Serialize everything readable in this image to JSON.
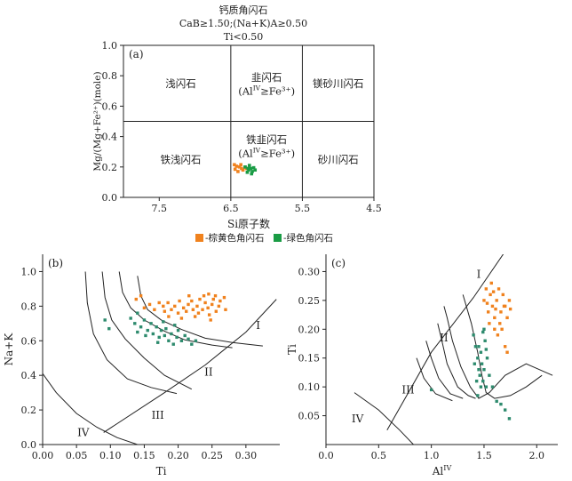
{
  "header": {
    "line1": "钙质角闪石",
    "line2": "CaB≥1.50;(Na+K)A≥0.50",
    "line3": "Ti<0.50"
  },
  "legend": {
    "items": [
      {
        "label": "-棕黄色角闪石",
        "color": "#f0821e"
      },
      {
        "label": "-绿色角闪石",
        "color": "#1a9c45"
      }
    ]
  },
  "chart_data": [
    {
      "id": "a",
      "type": "scatter",
      "panel_label": "(a)",
      "xlabel": "Si原子数",
      "ylabel": "Mg/(Mg+Fe²⁺)(mole)",
      "xlim": [
        8.0,
        4.5
      ],
      "ylim": [
        0.0,
        1.0
      ],
      "xticks": [
        "7.5",
        "6.5",
        "5.5",
        "4.5"
      ],
      "xtick_values": [
        7.5,
        6.5,
        5.5,
        4.5
      ],
      "yticks": [
        "0.0",
        "0.2",
        "0.4",
        "0.6",
        "0.8",
        "1.0"
      ],
      "ytick_values": [
        0.0,
        0.2,
        0.4,
        0.6,
        0.8,
        1.0
      ],
      "field_boundaries": {
        "x": [
          6.5,
          5.5
        ],
        "y": 0.5
      },
      "fields": [
        {
          "name": "浅闪石",
          "x": 7.2,
          "y": 0.75
        },
        {
          "name": "韭闪石",
          "x": 6.0,
          "y": 0.79
        },
        {
          "name": "(Al",
          "sup": "IV",
          "rest": "≥Fe³⁺)",
          "x": 6.0,
          "y": 0.7
        },
        {
          "name": "镁砂川闪石",
          "x": 5.0,
          "y": 0.75
        },
        {
          "name": "铁浅闪石",
          "x": 7.2,
          "y": 0.25
        },
        {
          "name": "铁韭闪石",
          "x": 6.0,
          "y": 0.38
        },
        {
          "name": "(Al",
          "sup": "IV",
          "rest": "≥Fe³⁺)",
          "x": 6.0,
          "y": 0.29
        },
        {
          "name": "砂川闪石",
          "x": 5.0,
          "y": 0.25
        }
      ],
      "series": [
        {
          "color": "#f0821e",
          "points": [
            [
              6.45,
              0.215
            ],
            [
              6.42,
              0.205
            ],
            [
              6.38,
              0.2
            ],
            [
              6.35,
              0.19
            ],
            [
              6.4,
              0.17
            ],
            [
              6.33,
              0.18
            ],
            [
              6.3,
              0.2
            ],
            [
              6.44,
              0.185
            ],
            [
              6.36,
              0.215
            ],
            [
              6.28,
              0.19
            ]
          ]
        },
        {
          "color": "#1a9c45",
          "points": [
            [
              6.3,
              0.2
            ],
            [
              6.25,
              0.18
            ],
            [
              6.22,
              0.19
            ],
            [
              6.2,
              0.17
            ],
            [
              6.27,
              0.165
            ],
            [
              6.18,
              0.195
            ],
            [
              6.24,
              0.21
            ],
            [
              6.21,
              0.155
            ],
            [
              6.16,
              0.18
            ],
            [
              6.26,
              0.19
            ]
          ]
        }
      ]
    },
    {
      "id": "b",
      "type": "scatter",
      "panel_label": "(b)",
      "xlabel": "Ti",
      "ylabel": "Na+K",
      "xlim": [
        0.0,
        0.35
      ],
      "ylim": [
        0.0,
        1.1
      ],
      "xticks": [
        "0.00",
        "0.05",
        "0.10",
        "0.15",
        "0.20",
        "0.25",
        "0.30"
      ],
      "xtick_values": [
        0.0,
        0.05,
        0.1,
        0.15,
        0.2,
        0.25,
        0.3
      ],
      "yticks": [
        "0.0",
        "0.2",
        "0.4",
        "0.6",
        "0.8",
        "1.0"
      ],
      "ytick_values": [
        0.0,
        0.2,
        0.4,
        0.6,
        0.8,
        1.0
      ],
      "field_labels": [
        {
          "text": "I",
          "x": 0.318,
          "y": 0.69
        },
        {
          "text": "II",
          "x": 0.245,
          "y": 0.42
        },
        {
          "text": "III",
          "x": 0.17,
          "y": 0.17
        },
        {
          "text": "IV",
          "x": 0.06,
          "y": 0.07
        }
      ],
      "curves": [
        [
          [
            0.0,
            0.41
          ],
          [
            0.02,
            0.3
          ],
          [
            0.05,
            0.18
          ],
          [
            0.08,
            0.1
          ],
          [
            0.11,
            0.04
          ],
          [
            0.14,
            0.0
          ]
        ],
        [
          [
            0.063,
            1.0
          ],
          [
            0.066,
            0.82
          ],
          [
            0.075,
            0.64
          ],
          [
            0.095,
            0.49
          ],
          [
            0.125,
            0.38
          ],
          [
            0.16,
            0.33
          ],
          [
            0.198,
            0.295
          ]
        ],
        [
          [
            0.088,
            1.0
          ],
          [
            0.092,
            0.85
          ],
          [
            0.102,
            0.72
          ],
          [
            0.122,
            0.61
          ],
          [
            0.15,
            0.5
          ],
          [
            0.18,
            0.4
          ],
          [
            0.22,
            0.32
          ]
        ],
        [
          [
            0.113,
            1.0
          ],
          [
            0.118,
            0.88
          ],
          [
            0.13,
            0.79
          ],
          [
            0.15,
            0.72
          ],
          [
            0.18,
            0.655
          ],
          [
            0.21,
            0.605
          ],
          [
            0.25,
            0.575
          ],
          [
            0.28,
            0.56
          ]
        ],
        [
          [
            0.14,
            0.975
          ],
          [
            0.145,
            0.86
          ],
          [
            0.155,
            0.78
          ],
          [
            0.175,
            0.72
          ],
          [
            0.205,
            0.665
          ],
          [
            0.24,
            0.615
          ],
          [
            0.28,
            0.59
          ],
          [
            0.325,
            0.57
          ]
        ],
        [
          [
            0.09,
            0.07
          ],
          [
            0.18,
            0.3
          ],
          [
            0.24,
            0.46
          ],
          [
            0.3,
            0.65
          ],
          [
            0.345,
            0.84
          ]
        ]
      ],
      "series": [
        {
          "color": "#f0821e",
          "points": [
            [
              0.138,
              0.84
            ],
            [
              0.145,
              0.86
            ],
            [
              0.15,
              0.79
            ],
            [
              0.158,
              0.81
            ],
            [
              0.165,
              0.78
            ],
            [
              0.172,
              0.82
            ],
            [
              0.178,
              0.8
            ],
            [
              0.18,
              0.77
            ],
            [
              0.185,
              0.82
            ],
            [
              0.19,
              0.78
            ],
            [
              0.195,
              0.8
            ],
            [
              0.2,
              0.76
            ],
            [
              0.202,
              0.83
            ],
            [
              0.208,
              0.79
            ],
            [
              0.212,
              0.77
            ],
            [
              0.215,
              0.81
            ],
            [
              0.22,
              0.83
            ],
            [
              0.222,
              0.78
            ],
            [
              0.228,
              0.8
            ],
            [
              0.23,
              0.76
            ],
            [
              0.232,
              0.84
            ],
            [
              0.236,
              0.78
            ],
            [
              0.24,
              0.82
            ],
            [
              0.244,
              0.79
            ],
            [
              0.246,
              0.75
            ],
            [
              0.25,
              0.81
            ],
            [
              0.252,
              0.84
            ],
            [
              0.256,
              0.77
            ],
            [
              0.26,
              0.8
            ],
            [
              0.262,
              0.83
            ],
            [
              0.27,
              0.78
            ],
            [
              0.225,
              0.74
            ],
            [
              0.205,
              0.73
            ],
            [
              0.245,
              0.87
            ],
            [
              0.255,
              0.86
            ],
            [
              0.268,
              0.85
            ],
            [
              0.238,
              0.86
            ],
            [
              0.186,
              0.74
            ],
            [
              0.216,
              0.86
            ],
            [
              0.248,
              0.72
            ]
          ]
        },
        {
          "color": "#2e8b6e",
          "points": [
            [
              0.092,
              0.72
            ],
            [
              0.098,
              0.67
            ],
            [
              0.13,
              0.73
            ],
            [
              0.136,
              0.7
            ],
            [
              0.14,
              0.76
            ],
            [
              0.145,
              0.68
            ],
            [
              0.15,
              0.72
            ],
            [
              0.155,
              0.66
            ],
            [
              0.16,
              0.7
            ],
            [
              0.163,
              0.64
            ],
            [
              0.168,
              0.68
            ],
            [
              0.172,
              0.62
            ],
            [
              0.175,
              0.66
            ],
            [
              0.18,
              0.63
            ],
            [
              0.182,
              0.67
            ],
            [
              0.186,
              0.6
            ],
            [
              0.19,
              0.64
            ],
            [
              0.193,
              0.58
            ],
            [
              0.198,
              0.62
            ],
            [
              0.2,
              0.66
            ],
            [
              0.205,
              0.6
            ],
            [
              0.21,
              0.63
            ],
            [
              0.215,
              0.61
            ],
            [
              0.22,
              0.58
            ],
            [
              0.226,
              0.6
            ],
            [
              0.17,
              0.59
            ],
            [
              0.152,
              0.63
            ],
            [
              0.178,
              0.71
            ],
            [
              0.195,
              0.69
            ],
            [
              0.14,
              0.65
            ]
          ]
        }
      ]
    },
    {
      "id": "c",
      "type": "scatter",
      "panel_label": "(c)",
      "xlabel": "Al",
      "xlabel_sup": "IV",
      "ylabel": "Ti",
      "xlim": [
        0.0,
        2.2
      ],
      "ylim": [
        0.0,
        0.33
      ],
      "xticks": [
        "0.0",
        "0.5",
        "1.0",
        "1.5",
        "2.0"
      ],
      "xtick_values": [
        0.0,
        0.5,
        1.0,
        1.5,
        2.0
      ],
      "yticks": [
        "0.05",
        "0.10",
        "0.15",
        "0.20",
        "0.25",
        "0.30"
      ],
      "ytick_values": [
        0.05,
        0.1,
        0.15,
        0.2,
        0.25,
        0.3
      ],
      "field_labels": [
        {
          "text": "I",
          "x": 1.45,
          "y": 0.295
        },
        {
          "text": "II",
          "x": 1.12,
          "y": 0.185
        },
        {
          "text": "III",
          "x": 0.78,
          "y": 0.095
        },
        {
          "text": "IV",
          "x": 0.3,
          "y": 0.045
        }
      ],
      "curves": [
        [
          [
            0.27,
            0.09
          ],
          [
            0.5,
            0.06
          ],
          [
            0.7,
            0.025
          ],
          [
            0.83,
            0.0
          ]
        ],
        [
          [
            0.58,
            0.025
          ],
          [
            1.0,
            0.16
          ],
          [
            1.4,
            0.255
          ],
          [
            1.7,
            0.335
          ]
        ],
        [
          [
            1.06,
            0.21
          ],
          [
            1.1,
            0.18
          ],
          [
            1.15,
            0.14
          ],
          [
            1.25,
            0.1
          ],
          [
            1.35,
            0.085
          ],
          [
            1.42,
            0.08
          ]
        ],
        [
          [
            0.95,
            0.18
          ],
          [
            1.0,
            0.15
          ],
          [
            1.07,
            0.115
          ],
          [
            1.18,
            0.088
          ],
          [
            1.3,
            0.08
          ]
        ],
        [
          [
            0.86,
            0.15
          ],
          [
            0.93,
            0.115
          ],
          [
            1.04,
            0.088
          ],
          [
            1.2,
            0.076
          ]
        ],
        [
          [
            1.12,
            0.24
          ],
          [
            1.15,
            0.22
          ],
          [
            1.2,
            0.18
          ],
          [
            1.28,
            0.135
          ],
          [
            1.37,
            0.1
          ],
          [
            1.45,
            0.08
          ],
          [
            1.55,
            0.09
          ],
          [
            1.7,
            0.12
          ],
          [
            1.9,
            0.14
          ],
          [
            2.15,
            0.12
          ]
        ],
        [
          [
            1.3,
            0.26
          ],
          [
            1.38,
            0.21
          ],
          [
            1.44,
            0.16
          ],
          [
            1.48,
            0.12
          ],
          [
            1.52,
            0.09
          ],
          [
            1.6,
            0.08
          ],
          [
            1.75,
            0.085
          ],
          [
            1.9,
            0.1
          ],
          [
            2.05,
            0.12
          ]
        ]
      ],
      "series": [
        {
          "color": "#f0821e",
          "points": [
            [
              1.5,
              0.25
            ],
            [
              1.52,
              0.27
            ],
            [
              1.54,
              0.23
            ],
            [
              1.56,
              0.26
            ],
            [
              1.58,
              0.24
            ],
            [
              1.6,
              0.22
            ],
            [
              1.62,
              0.25
            ],
            [
              1.64,
              0.27
            ],
            [
              1.66,
              0.23
            ],
            [
              1.68,
              0.26
            ],
            [
              1.7,
              0.24
            ],
            [
              1.72,
              0.22
            ],
            [
              1.74,
              0.25
            ],
            [
              1.55,
              0.21
            ],
            [
              1.6,
              0.2
            ],
            [
              1.63,
              0.19
            ],
            [
              1.57,
              0.28
            ],
            [
              1.65,
              0.21
            ],
            [
              1.7,
              0.17
            ],
            [
              1.72,
              0.16
            ],
            [
              1.67,
              0.2
            ],
            [
              1.53,
              0.245
            ],
            [
              1.59,
              0.265
            ],
            [
              1.69,
              0.24
            ],
            [
              1.61,
              0.235
            ],
            [
              1.75,
              0.235
            ]
          ]
        },
        {
          "color": "#2e8b6e",
          "points": [
            [
              1.0,
              0.095
            ],
            [
              1.4,
              0.19
            ],
            [
              1.42,
              0.17
            ],
            [
              1.44,
              0.15
            ],
            [
              1.45,
              0.13
            ],
            [
              1.46,
              0.12
            ],
            [
              1.47,
              0.16
            ],
            [
              1.48,
              0.14
            ],
            [
              1.49,
              0.11
            ],
            [
              1.5,
              0.13
            ],
            [
              1.51,
              0.18
            ],
            [
              1.52,
              0.1
            ],
            [
              1.53,
              0.15
            ],
            [
              1.43,
              0.11
            ],
            [
              1.41,
              0.14
            ],
            [
              1.45,
              0.17
            ],
            [
              1.5,
              0.2
            ],
            [
              1.55,
              0.12
            ],
            [
              1.58,
              0.1
            ],
            [
              1.62,
              0.075
            ],
            [
              1.66,
              0.07
            ],
            [
              1.7,
              0.06
            ],
            [
              1.74,
              0.045
            ],
            [
              1.47,
              0.1
            ],
            [
              1.44,
              0.085
            ],
            [
              1.52,
              0.165
            ],
            [
              1.49,
              0.195
            ]
          ]
        }
      ]
    }
  ]
}
